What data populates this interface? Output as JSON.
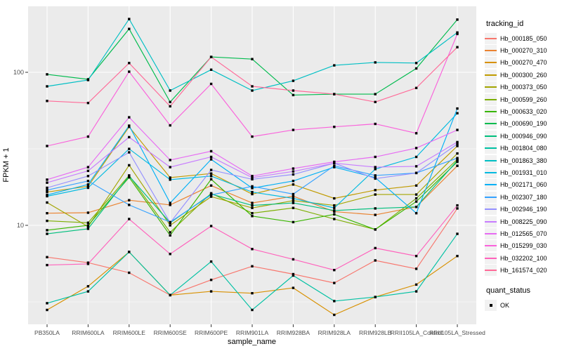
{
  "figure": {
    "xlabel": "sample_name",
    "ylabel": "FPKM + 1",
    "legend_title": "tracking_id",
    "legend2_title": "quant_status",
    "legend2_items": [
      "OK"
    ],
    "panel_bg": "#EBEBEB",
    "grid_color": "#FFFFFF",
    "tick_color": "#333333",
    "tick_label_color": "#4D4D4D",
    "point_color": "#000000",
    "legend_key_bg": "#F2F2F2"
  },
  "chart_data": {
    "type": "line",
    "title": "",
    "xlabel": "sample_name",
    "ylabel": "FPKM + 1",
    "y_scale": "log10",
    "ylim": [
      2.2,
      270
    ],
    "grid": true,
    "legend_position": "right",
    "marker": "black-square",
    "categories": [
      "PB350LA",
      "RRIM600LA",
      "RRIM600LE",
      "RRIM600SE",
      "RRIM600PE",
      "RRIM901LA",
      "RRIM928BA",
      "RRIM928LA",
      "RRIM928LB",
      "RRII105LA_Control",
      "RRII105LA_Stressed"
    ],
    "y_major_ticks": [
      {
        "label": "100",
        "value": 100
      },
      {
        "label": "10",
        "value": 10
      }
    ],
    "y_minor_ticks": [
      31.62,
      3.162
    ],
    "quant_status": "OK",
    "series": [
      {
        "name": "Hb_000185_050",
        "color": "#F8766D",
        "values": [
          6.2,
          5.7,
          4.9,
          3.5,
          4.4,
          5.4,
          4.8,
          4.2,
          5.9,
          5.2,
          12.9
        ]
      },
      {
        "name": "Hb_000270_310",
        "color": "#EA8331",
        "values": [
          12.0,
          12.1,
          14.6,
          13.6,
          18.2,
          14.0,
          15.5,
          12.3,
          11.7,
          13.2,
          24.5
        ]
      },
      {
        "name": "Hb_000270_470",
        "color": "#D89000",
        "values": [
          2.8,
          4.0,
          6.7,
          3.5,
          3.7,
          3.6,
          3.9,
          2.6,
          3.4,
          4.1,
          6.3
        ]
      },
      {
        "name": "Hb_000300_260",
        "color": "#C09B00",
        "values": [
          16.5,
          18.0,
          44.0,
          20.5,
          21.8,
          16.0,
          18.5,
          15.0,
          17.0,
          18.2,
          33.0
        ]
      },
      {
        "name": "Hb_000373_050",
        "color": "#A3A500",
        "values": [
          14.1,
          9.8,
          24.7,
          10.0,
          15.4,
          13.0,
          14.5,
          13.5,
          15.9,
          15.9,
          29.5
        ]
      },
      {
        "name": "Hb_000599_260",
        "color": "#7CAE00",
        "values": [
          10.7,
          10.4,
          21.2,
          9.0,
          16.2,
          12.0,
          13.0,
          11.0,
          9.4,
          15.0,
          27.0
        ]
      },
      {
        "name": "Hb_000633_020",
        "color": "#39B600",
        "values": [
          9.3,
          10.0,
          20.6,
          8.6,
          20.0,
          11.5,
          10.5,
          11.8,
          9.4,
          14.3,
          26.0
        ]
      },
      {
        "name": "Hb_000690_190",
        "color": "#00BB4E",
        "values": [
          97,
          90,
          192,
          64,
          126,
          122,
          71,
          72,
          72,
          106,
          221
        ]
      },
      {
        "name": "Hb_000946_090",
        "color": "#00BF7D",
        "values": [
          8.8,
          9.5,
          21.0,
          10.4,
          16.0,
          13.5,
          14.0,
          12.5,
          12.9,
          13.2,
          26.5
        ]
      },
      {
        "name": "Hb_001804_080",
        "color": "#00C1A3",
        "values": [
          3.1,
          3.7,
          6.7,
          3.5,
          5.8,
          2.8,
          4.7,
          3.2,
          3.4,
          3.7,
          8.8
        ]
      },
      {
        "name": "Hb_001863_380",
        "color": "#00BFC4",
        "values": [
          81,
          89,
          223,
          76,
          104,
          76,
          88,
          111,
          116,
          115,
          182
        ]
      },
      {
        "name": "Hb_001931_010",
        "color": "#00BAE0",
        "values": [
          15.5,
          17.6,
          31.6,
          19.9,
          21.0,
          16.5,
          15.0,
          13.0,
          23.3,
          28.0,
          54.0
        ]
      },
      {
        "name": "Hb_002171_060",
        "color": "#00B0F6",
        "values": [
          15.8,
          18.5,
          44.8,
          14.0,
          27.0,
          17.5,
          19.5,
          24.0,
          20.5,
          12.0,
          58.0
        ]
      },
      {
        "name": "Hb_002307_180",
        "color": "#35A2FF",
        "values": [
          17.0,
          19.5,
          13.6,
          10.5,
          15.8,
          18.0,
          16.0,
          24.5,
          21.2,
          22.0,
          27.5
        ]
      },
      {
        "name": "Hb_002946_190",
        "color": "#9590FF",
        "values": [
          17.6,
          21.0,
          30.0,
          10.4,
          23.0,
          20.0,
          21.5,
          25.5,
          20.2,
          22.0,
          34.0
        ]
      },
      {
        "name": "Hb_008225_090",
        "color": "#C77CFF",
        "values": [
          19.0,
          22.7,
          37.7,
          24.0,
          28.0,
          20.5,
          22.5,
          25.5,
          24.0,
          24.3,
          35.0
        ]
      },
      {
        "name": "Hb_012565_070",
        "color": "#E76BF3",
        "values": [
          19.9,
          24.0,
          50.8,
          26.7,
          30.5,
          21.0,
          23.5,
          26.0,
          28.0,
          32.0,
          42.0
        ]
      },
      {
        "name": "Hb_015299_030",
        "color": "#FA62DB",
        "values": [
          33,
          38,
          101,
          45,
          84,
          38,
          42,
          44,
          46,
          40,
          178
        ]
      },
      {
        "name": "Hb_032202_100",
        "color": "#FF62BC",
        "values": [
          5.5,
          5.6,
          11.0,
          6.5,
          9.9,
          7.0,
          6.0,
          5.1,
          7.1,
          6.3,
          13.5
        ]
      },
      {
        "name": "Hb_161574_020",
        "color": "#FF6A98",
        "values": [
          65,
          63,
          115,
          60,
          126,
          81,
          76,
          72,
          64,
          79,
          146
        ]
      }
    ]
  }
}
